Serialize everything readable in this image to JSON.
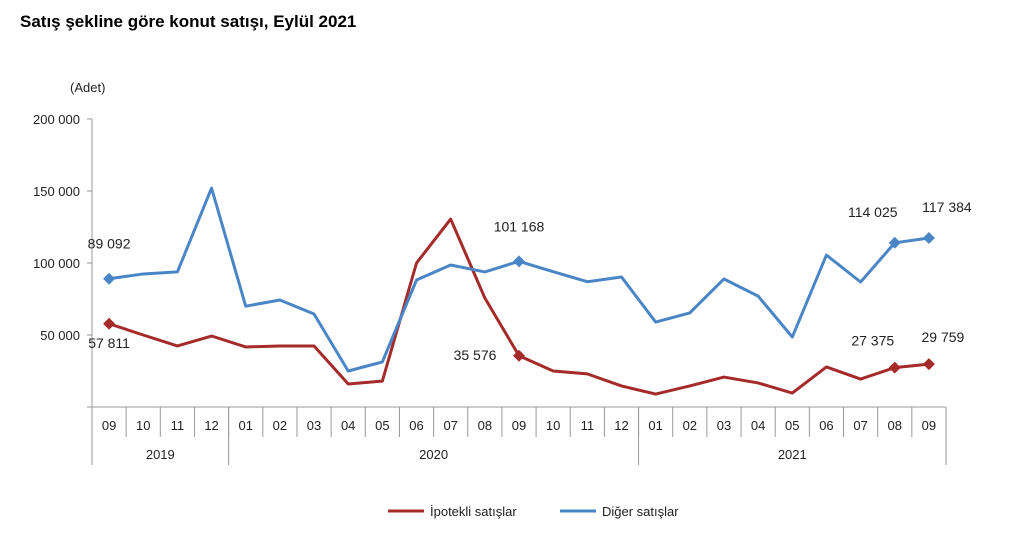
{
  "chart_data": {
    "type": "line",
    "title": "Satış şekline göre konut satışı, Eylül 2021",
    "ylabel": "(Adet)",
    "xlabel": "",
    "ylim": [
      0,
      200000
    ],
    "yticks": [
      0,
      50000,
      100000,
      150000,
      200000
    ],
    "ytick_labels": [
      "",
      "50 000",
      "100 000",
      "150 000",
      "200 000"
    ],
    "categories": [
      "09",
      "10",
      "11",
      "12",
      "01",
      "02",
      "03",
      "04",
      "05",
      "06",
      "07",
      "08",
      "09",
      "10",
      "11",
      "12",
      "01",
      "02",
      "03",
      "04",
      "05",
      "06",
      "07",
      "08",
      "09"
    ],
    "years": [
      {
        "label": "2019",
        "count": 4
      },
      {
        "label": "2020",
        "count": 12
      },
      {
        "label": "2021",
        "count": 9
      }
    ],
    "grid": false,
    "legend": "bottom-center",
    "series": [
      {
        "name": "İpotekli satışlar",
        "color": "#a52a2a",
        "values": [
          57811,
          50000,
          42400,
          49300,
          41700,
          42400,
          42400,
          16000,
          18000,
          100000,
          130500,
          75700,
          35576,
          25000,
          23000,
          14600,
          9000,
          14600,
          20800,
          16700,
          9700,
          27800,
          19400,
          27375,
          29759
        ],
        "labels": [
          {
            "index": 0,
            "text": "57 811"
          },
          {
            "index": 12,
            "text": "35 576"
          },
          {
            "index": 23,
            "text": "27 375"
          },
          {
            "index": 24,
            "text": "29 759"
          }
        ]
      },
      {
        "name": "Diğer satışlar",
        "color": "#4a86c5",
        "values": [
          89092,
          92400,
          93800,
          152000,
          70000,
          74300,
          64600,
          25000,
          31300,
          88200,
          98600,
          93800,
          101168,
          94000,
          87000,
          90300,
          59000,
          65300,
          88900,
          77000,
          48600,
          105500,
          86800,
          114025,
          117384
        ],
        "labels": [
          {
            "index": 0,
            "text": "89 092"
          },
          {
            "index": 12,
            "text": "101 168"
          },
          {
            "index": 23,
            "text": "114 025"
          },
          {
            "index": 24,
            "text": "117 384"
          }
        ]
      }
    ]
  }
}
